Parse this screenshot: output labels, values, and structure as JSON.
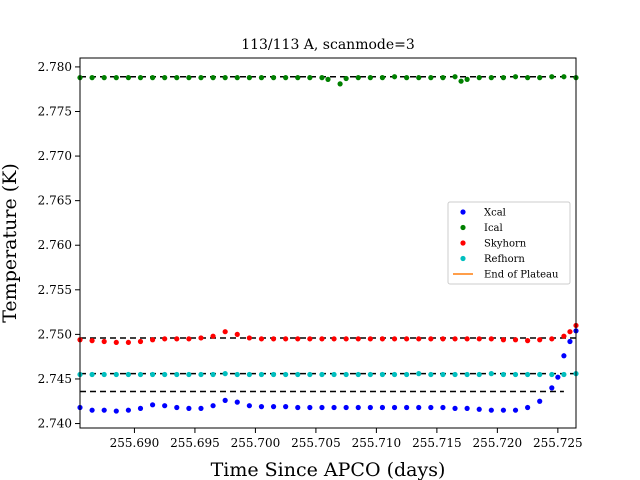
{
  "chart_data": {
    "type": "scatter",
    "title": "113/113 A, scanmode=3",
    "xlabel": "Time Since APCO (days)",
    "ylabel": "Temperature (K)",
    "xlim": [
      255.6855,
      255.7265
    ],
    "ylim": [
      2.7395,
      2.781
    ],
    "x_ticks": [
      255.69,
      255.695,
      255.7,
      255.705,
      255.71,
      255.715,
      255.72,
      255.725
    ],
    "x_tick_labels": [
      "255.690",
      "255.695",
      "255.700",
      "255.705",
      "255.710",
      "255.715",
      "255.720",
      "255.725"
    ],
    "y_ticks": [
      2.74,
      2.745,
      2.75,
      2.755,
      2.76,
      2.765,
      2.77,
      2.775,
      2.78
    ],
    "y_tick_labels": [
      "2.740",
      "2.745",
      "2.750",
      "2.755",
      "2.760",
      "2.765",
      "2.770",
      "2.775",
      "2.780"
    ],
    "grid": false,
    "legend_placement": "center-right",
    "series": [
      {
        "name": "Xcal",
        "color": "#0000ff",
        "x": [
          255.6855,
          255.6865,
          255.6875,
          255.6885,
          255.6895,
          255.6905,
          255.6915,
          255.6925,
          255.6935,
          255.6945,
          255.6955,
          255.6965,
          255.6975,
          255.6985,
          255.6995,
          255.7005,
          255.7015,
          255.7025,
          255.7035,
          255.7045,
          255.7055,
          255.7065,
          255.7075,
          255.7085,
          255.7095,
          255.7105,
          255.7115,
          255.7125,
          255.7135,
          255.7145,
          255.7155,
          255.7165,
          255.7175,
          255.7185,
          255.7195,
          255.7205,
          255.7215,
          255.7225,
          255.7235,
          255.7245,
          255.725,
          255.7255,
          255.726,
          255.7265
        ],
        "y": [
          2.7418,
          2.7415,
          2.7415,
          2.7414,
          2.7415,
          2.7417,
          2.7421,
          2.742,
          2.7418,
          2.7417,
          2.7417,
          2.742,
          2.7426,
          2.7424,
          2.742,
          2.7419,
          2.7419,
          2.7419,
          2.7418,
          2.7418,
          2.7418,
          2.7418,
          2.7418,
          2.7418,
          2.7418,
          2.7418,
          2.7418,
          2.7418,
          2.7418,
          2.7418,
          2.7418,
          2.7417,
          2.7417,
          2.7416,
          2.7415,
          2.7415,
          2.7415,
          2.7418,
          2.7425,
          2.744,
          2.7452,
          2.7476,
          2.7492,
          2.7504
        ]
      },
      {
        "name": "Ical",
        "color": "#008000",
        "x": [
          255.6855,
          255.6865,
          255.6875,
          255.6885,
          255.6895,
          255.6905,
          255.6915,
          255.6925,
          255.6935,
          255.6945,
          255.6955,
          255.6965,
          255.6975,
          255.6985,
          255.6995,
          255.7005,
          255.7015,
          255.7025,
          255.7035,
          255.7045,
          255.7055,
          255.706,
          255.707,
          255.7075,
          255.7085,
          255.7095,
          255.7105,
          255.7115,
          255.7125,
          255.7135,
          255.7145,
          255.7155,
          255.7165,
          255.717,
          255.7175,
          255.7185,
          255.7195,
          255.7205,
          255.7215,
          255.7225,
          255.7235,
          255.7245,
          255.7255,
          255.7265
        ],
        "y": [
          2.7788,
          2.7788,
          2.7788,
          2.7788,
          2.7788,
          2.7788,
          2.7788,
          2.7788,
          2.7788,
          2.7788,
          2.7788,
          2.7788,
          2.7788,
          2.7788,
          2.7788,
          2.7788,
          2.7788,
          2.7788,
          2.7788,
          2.7788,
          2.7788,
          2.7786,
          2.7781,
          2.7787,
          2.7788,
          2.7788,
          2.7788,
          2.7789,
          2.7788,
          2.7788,
          2.7788,
          2.7788,
          2.7789,
          2.7784,
          2.7786,
          2.7788,
          2.7788,
          2.7788,
          2.7789,
          2.7788,
          2.7788,
          2.7789,
          2.7789,
          2.7788
        ]
      },
      {
        "name": "Skyhorn",
        "color": "#ff0000",
        "x": [
          255.6855,
          255.6865,
          255.6875,
          255.6885,
          255.6895,
          255.6905,
          255.6915,
          255.6925,
          255.6935,
          255.6945,
          255.6955,
          255.6965,
          255.6975,
          255.6985,
          255.6995,
          255.7005,
          255.7015,
          255.7025,
          255.7035,
          255.7045,
          255.7055,
          255.7065,
          255.7075,
          255.7085,
          255.7095,
          255.7105,
          255.7115,
          255.7125,
          255.7135,
          255.7145,
          255.7155,
          255.7165,
          255.7175,
          255.7185,
          255.7195,
          255.7205,
          255.7215,
          255.7225,
          255.7235,
          255.7245,
          255.7255,
          255.726,
          255.7265
        ],
        "y": [
          2.7494,
          2.7493,
          2.7492,
          2.7491,
          2.7491,
          2.7492,
          2.7494,
          2.7495,
          2.7495,
          2.7495,
          2.7496,
          2.7498,
          2.7503,
          2.75,
          2.7496,
          2.7495,
          2.7495,
          2.7495,
          2.7495,
          2.7495,
          2.7495,
          2.7495,
          2.7495,
          2.7495,
          2.7495,
          2.7495,
          2.7495,
          2.7495,
          2.7495,
          2.7495,
          2.7495,
          2.7495,
          2.7495,
          2.7495,
          2.7495,
          2.7494,
          2.7494,
          2.7493,
          2.7494,
          2.7495,
          2.7498,
          2.7503,
          2.751
        ]
      },
      {
        "name": "Refhorn",
        "color": "#00bfbf",
        "x": [
          255.6855,
          255.6865,
          255.6875,
          255.6885,
          255.6895,
          255.6905,
          255.6915,
          255.6925,
          255.6935,
          255.6945,
          255.6955,
          255.6965,
          255.6975,
          255.6985,
          255.6995,
          255.7005,
          255.7015,
          255.7025,
          255.7035,
          255.7045,
          255.7055,
          255.7065,
          255.7075,
          255.7085,
          255.7095,
          255.7105,
          255.7115,
          255.7125,
          255.7135,
          255.7145,
          255.7155,
          255.7165,
          255.7175,
          255.7185,
          255.7195,
          255.7205,
          255.7215,
          255.7225,
          255.7235,
          255.7245,
          255.7255,
          255.7265
        ],
        "y": [
          2.7455,
          2.7455,
          2.7455,
          2.7455,
          2.7455,
          2.7455,
          2.7455,
          2.7455,
          2.7455,
          2.7455,
          2.7455,
          2.7455,
          2.7456,
          2.7455,
          2.7455,
          2.7455,
          2.7455,
          2.7455,
          2.7455,
          2.7455,
          2.7455,
          2.7455,
          2.7455,
          2.7455,
          2.7455,
          2.7455,
          2.7455,
          2.7455,
          2.7456,
          2.7455,
          2.7455,
          2.7455,
          2.7455,
          2.7455,
          2.7456,
          2.7455,
          2.7455,
          2.7455,
          2.7455,
          2.7455,
          2.7455,
          2.7456
        ]
      }
    ],
    "reference_lines": [
      {
        "y": 2.7789,
        "x": [
          255.6855,
          255.7265
        ],
        "style": "dashed",
        "color": "#000000"
      },
      {
        "y": 2.7496,
        "x": [
          255.6855,
          255.7265
        ],
        "style": "dashed",
        "color": "#000000"
      },
      {
        "y": 2.7456,
        "x": [
          255.6855,
          255.7265
        ],
        "style": "dashed",
        "color": "#000000"
      },
      {
        "y": 2.7436,
        "x": [
          255.6855,
          255.7255
        ],
        "style": "dashed",
        "color": "#000000"
      }
    ],
    "legend": [
      {
        "label": "Xcal",
        "marker": "dot",
        "color": "#0000ff"
      },
      {
        "label": "Ical",
        "marker": "dot",
        "color": "#008000"
      },
      {
        "label": "Skyhorn",
        "marker": "dot",
        "color": "#ff0000"
      },
      {
        "label": "Refhorn",
        "marker": "dot",
        "color": "#00bfbf"
      },
      {
        "label": "End of Plateau",
        "marker": "line",
        "color": "#ff7f0e"
      }
    ]
  }
}
